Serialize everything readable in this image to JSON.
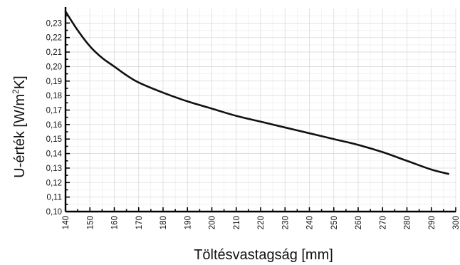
{
  "chart_data": {
    "type": "line",
    "xlabel": "Töltésvastagság [mm]",
    "ylabel_main": "U-érték [W/m",
    "ylabel_sup": "2",
    "ylabel_end": "K]",
    "xlim": [
      140,
      300
    ],
    "ylim": [
      0.1,
      0.24
    ],
    "x_ticks": [
      "140",
      "150",
      "160",
      "170",
      "180",
      "190",
      "200",
      "210",
      "220",
      "230",
      "240",
      "250",
      "260",
      "270",
      "280",
      "290",
      "300"
    ],
    "y_ticks": [
      "0,10",
      "0,11",
      "0,12",
      "0,13",
      "0,14",
      "0,15",
      "0,16",
      "0,17",
      "0,18",
      "0,19",
      "0,20",
      "0,21",
      "0,22",
      "0,23"
    ],
    "grid": true,
    "series": [
      {
        "x": [
          140,
          145,
          150,
          155,
          160,
          165,
          170,
          180,
          190,
          200,
          210,
          220,
          230,
          240,
          250,
          260,
          270,
          280,
          290,
          297
        ],
        "y": [
          0.238,
          0.225,
          0.214,
          0.206,
          0.2,
          0.194,
          0.189,
          0.182,
          0.176,
          0.171,
          0.166,
          0.162,
          0.158,
          0.154,
          0.15,
          0.146,
          0.141,
          0.135,
          0.129,
          0.126
        ]
      }
    ]
  }
}
